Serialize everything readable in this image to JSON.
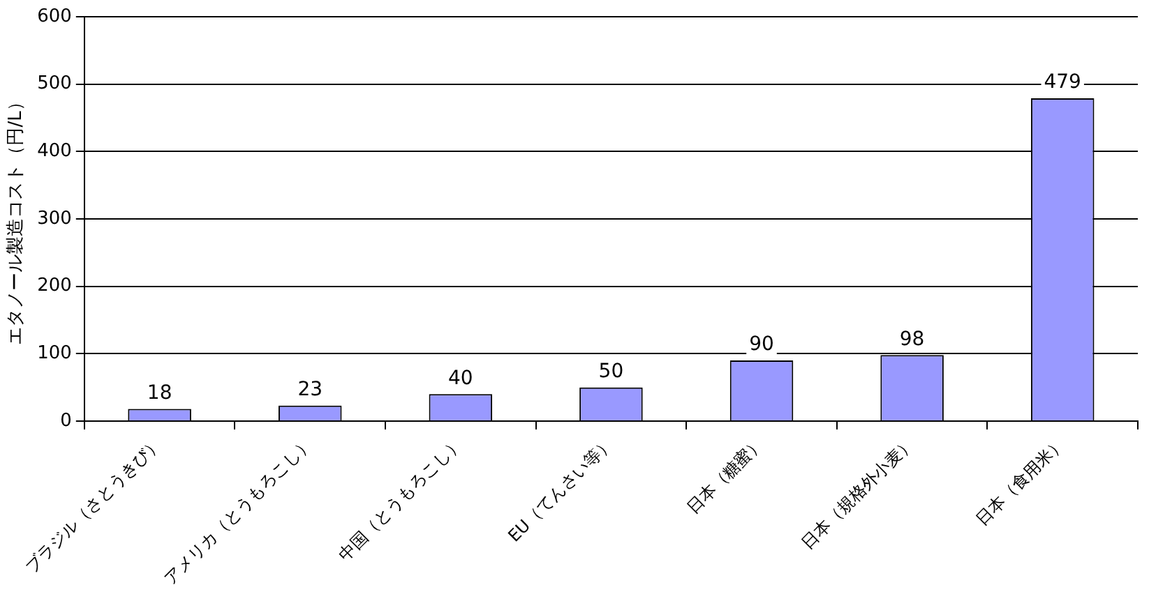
{
  "chart_data": {
    "type": "bar",
    "ylabel": "エタノール製造コスト（円/L）",
    "categories": [
      "ブラジル（さとうきび）",
      "アメリカ（とうもろこし）",
      "中国（とうもろこし）",
      "EU（てんさい等）",
      "日本（糖蜜）",
      "日本（規格外小麦）",
      "日本（食用米）"
    ],
    "values": [
      18,
      23,
      40,
      50,
      90,
      98,
      479
    ],
    "color": "#9999ff",
    "ylim": [
      0,
      600
    ],
    "yticks": [
      0,
      100,
      200,
      300,
      400,
      500,
      600
    ],
    "grid": "y",
    "data_labels": true,
    "legend": false
  }
}
